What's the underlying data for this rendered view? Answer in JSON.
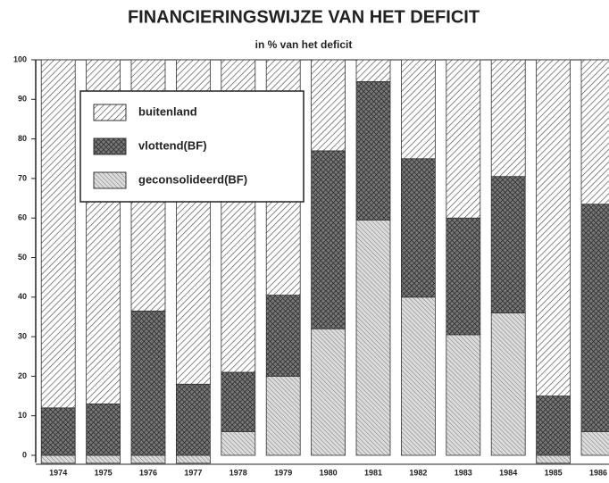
{
  "chart_data": {
    "type": "stacked_bar",
    "title": "FINANCIERINGSWIJZE VAN HET DEFICIT",
    "subtitle": "in % van het deficit",
    "categories": [
      "1974",
      "1975",
      "1976",
      "1977",
      "1978",
      "1979",
      "1980",
      "1981",
      "1982",
      "1983",
      "1984",
      "1985",
      "1986"
    ],
    "series": [
      {
        "name": "geconsolideerd(BF)",
        "color": "#8a8a8a",
        "values": [
          -2,
          -2,
          -2,
          -2,
          6,
          20,
          32,
          59.5,
          40,
          30.5,
          36,
          -2,
          6
        ]
      },
      {
        "name": "vlottend(BF)",
        "color": "#2a2a2a",
        "values": [
          12,
          13,
          36.5,
          18,
          15,
          20.5,
          45,
          35,
          35,
          29.5,
          34.5,
          15,
          57.5
        ]
      },
      {
        "name": "buitenland",
        "color": "#555555",
        "values": [
          88,
          87,
          63.5,
          82,
          79,
          59.5,
          23,
          5.5,
          25,
          40,
          29.5,
          85,
          36.5
        ]
      }
    ],
    "legend_order": [
      "buitenland",
      "vlottend(BF)",
      "geconsolideerd(BF)"
    ],
    "ylim": [
      0,
      100
    ],
    "yticks": [
      0,
      10,
      20,
      30,
      40,
      50,
      60,
      70,
      80,
      90,
      100
    ]
  }
}
